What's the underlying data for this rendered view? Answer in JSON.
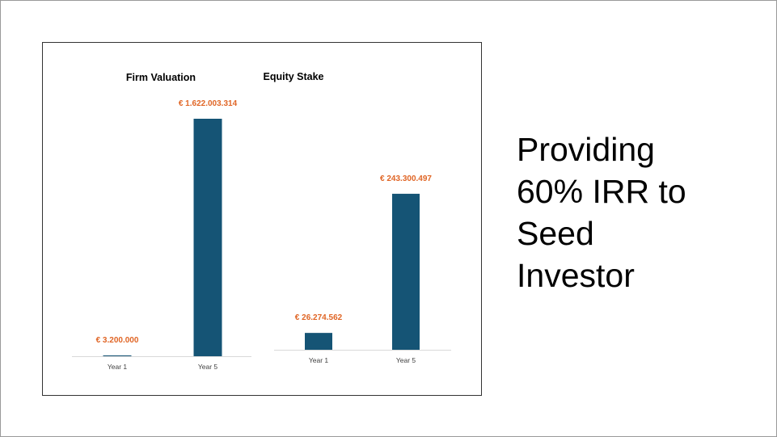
{
  "slide": {
    "heading_lines": [
      "Providing",
      "60% IRR to",
      "Seed",
      "Investor"
    ]
  },
  "colors": {
    "bar": "#155475",
    "value_label": "#E06525",
    "axis": "#D9D9D9",
    "tick_label": "#404040",
    "title": "#000000"
  },
  "chart_data": [
    {
      "type": "bar",
      "title": "Firm Valuation",
      "categories": [
        "Year 1",
        "Year 5"
      ],
      "values": [
        3200000,
        1622003314
      ],
      "value_labels": [
        "€ 3.200.000",
        "€ 1.622.003.314"
      ],
      "xlabel": "",
      "ylabel": "",
      "ylim": [
        0,
        1622003314
      ],
      "grid": false,
      "legend": "none"
    },
    {
      "type": "bar",
      "title": "Equity Stake",
      "categories": [
        "Year 1",
        "Year 5"
      ],
      "values": [
        26274562,
        243300497
      ],
      "value_labels": [
        "€ 26.274.562",
        "€ 243.300.497"
      ],
      "xlabel": "",
      "ylabel": "",
      "ylim": [
        0,
        446000000
      ],
      "grid": false,
      "legend": "none"
    }
  ]
}
